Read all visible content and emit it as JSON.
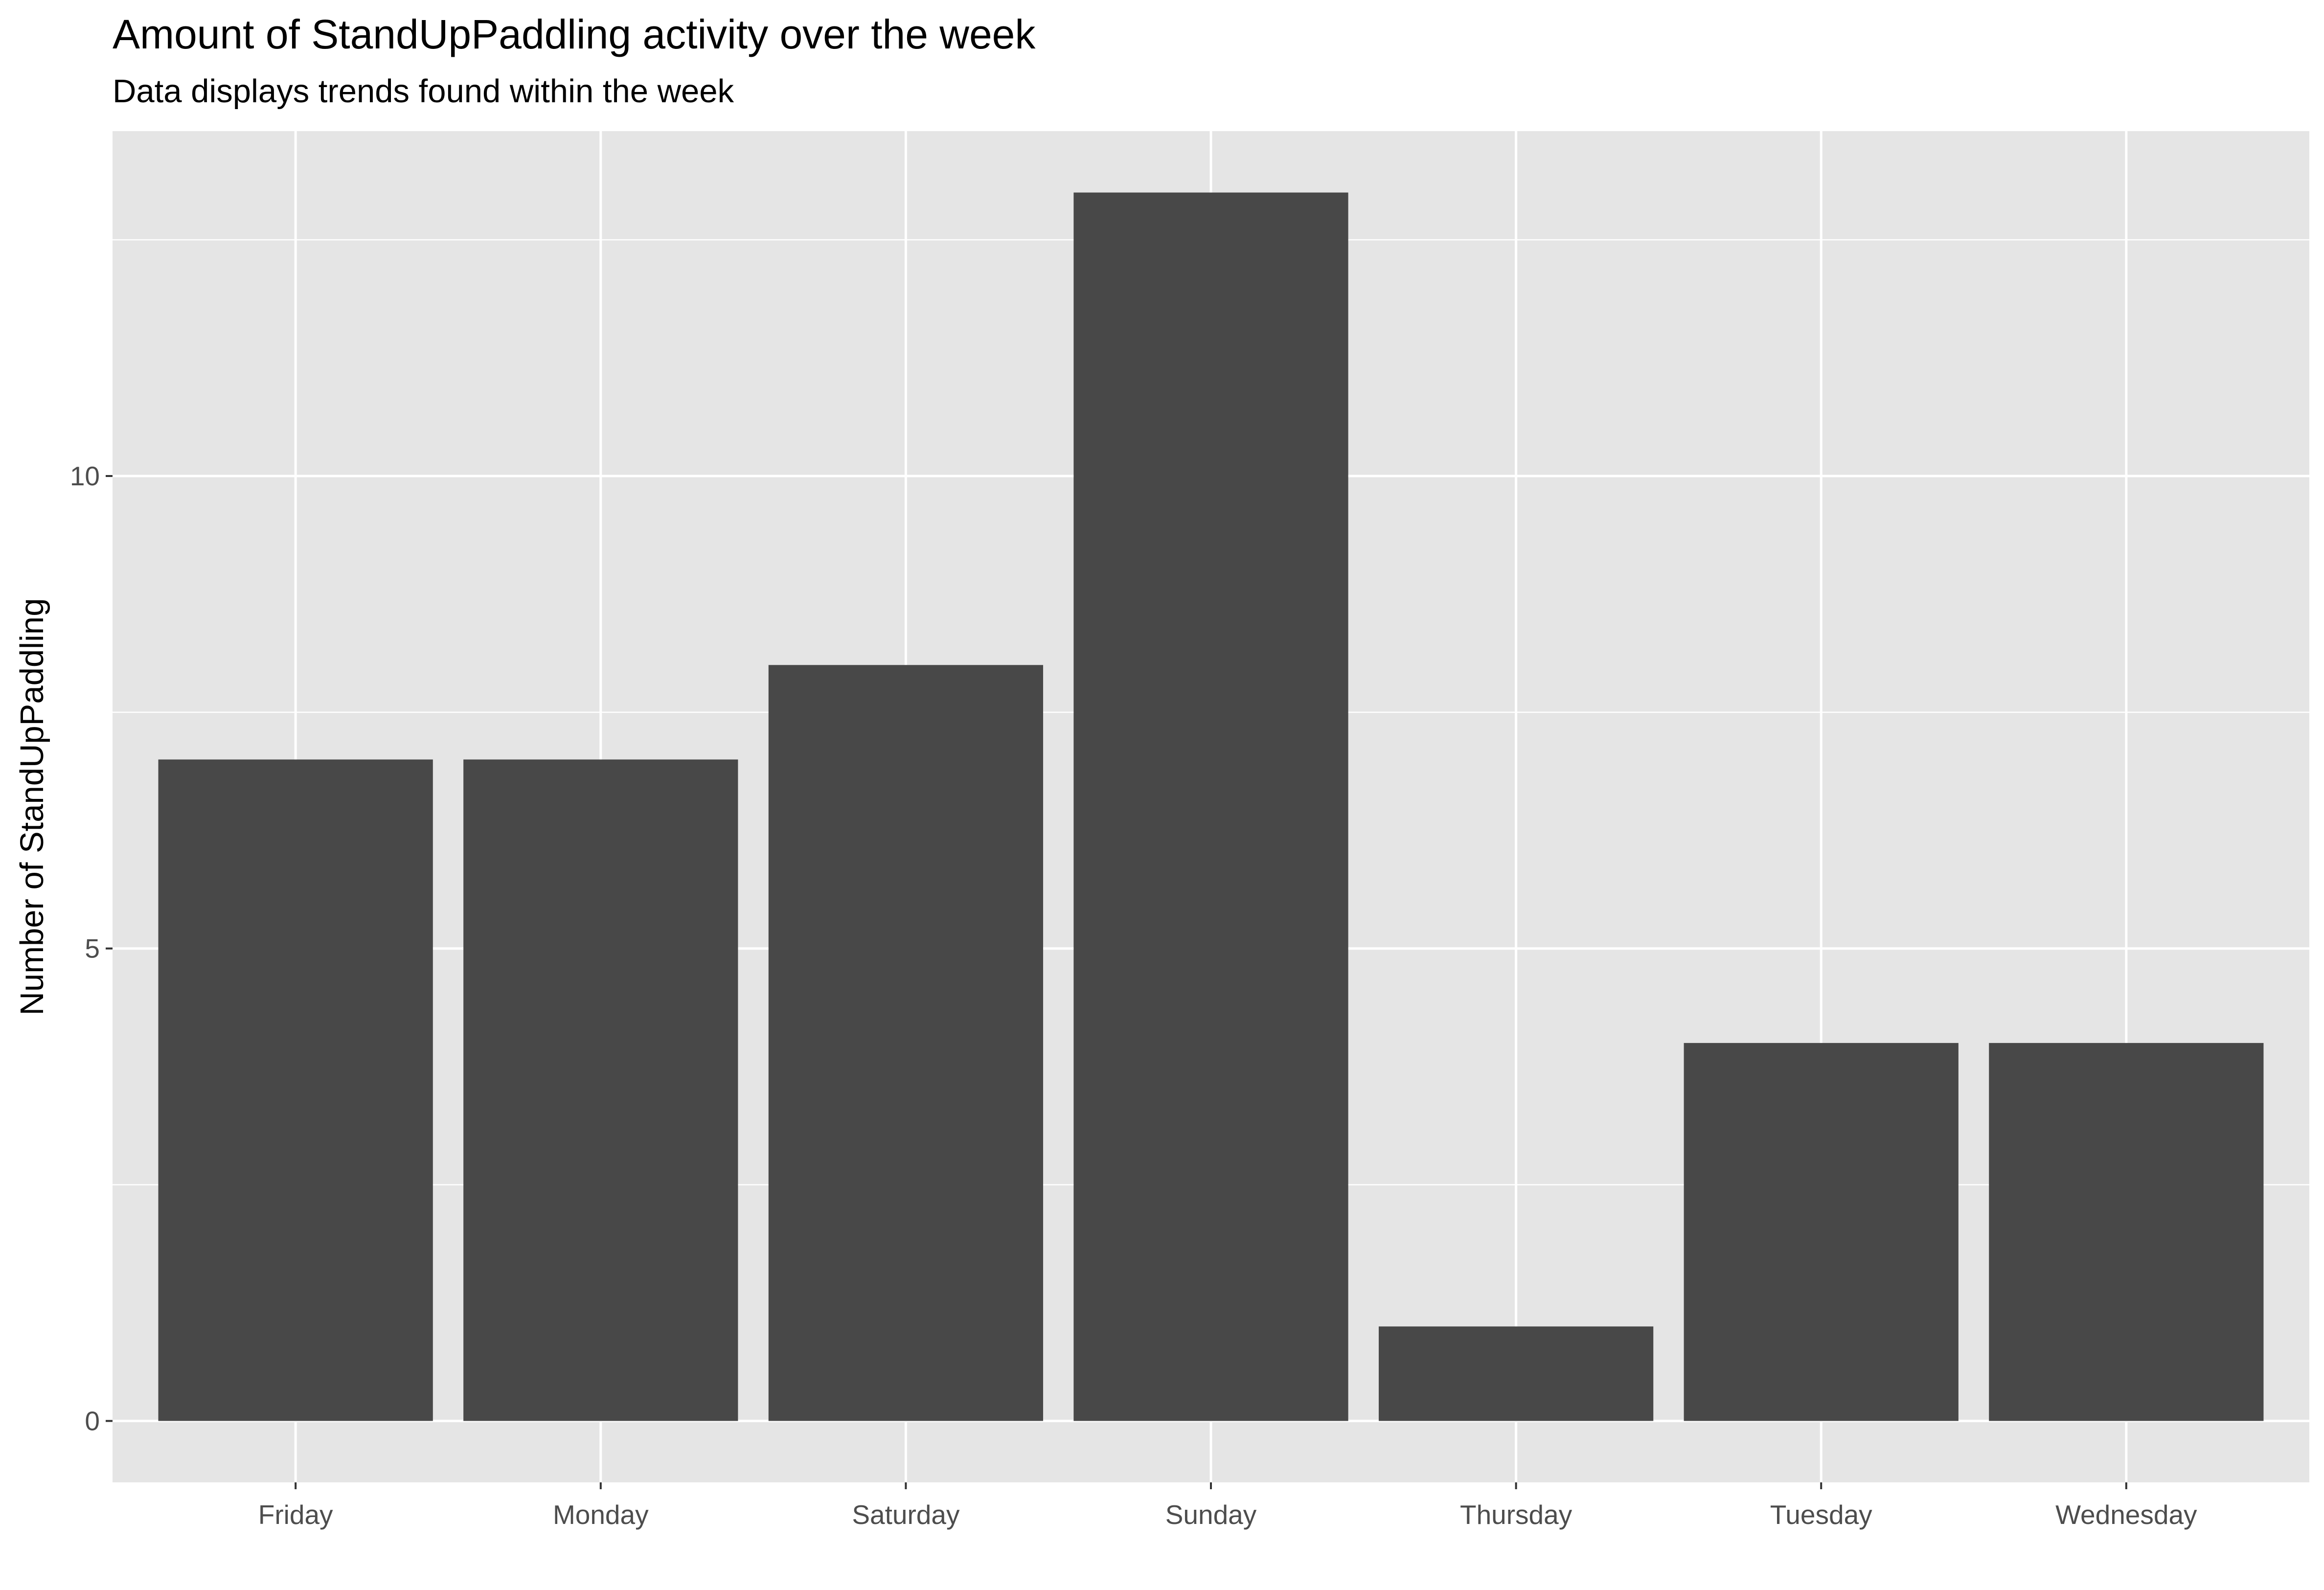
{
  "chart_data": {
    "type": "bar",
    "title": "Amount of StandUpPaddling activity over the week",
    "subtitle": "Data displays trends found within the week",
    "xlabel": "",
    "ylabel": "Number of StandUpPaddling",
    "categories": [
      "Friday",
      "Monday",
      "Saturday",
      "Sunday",
      "Thursday",
      "Tuesday",
      "Wednesday"
    ],
    "values": [
      7,
      7,
      8,
      13,
      1,
      4,
      4
    ],
    "ylim": [
      -0.65,
      13.65
    ],
    "yticks": [
      0,
      5,
      10
    ],
    "ytick_labels": [
      "0",
      "5",
      "10"
    ],
    "grid": true,
    "colors": {
      "bar": "#484848",
      "panel": "#e5e5e5",
      "grid": "#ffffff",
      "tick_text": "#4d4d4d"
    }
  }
}
